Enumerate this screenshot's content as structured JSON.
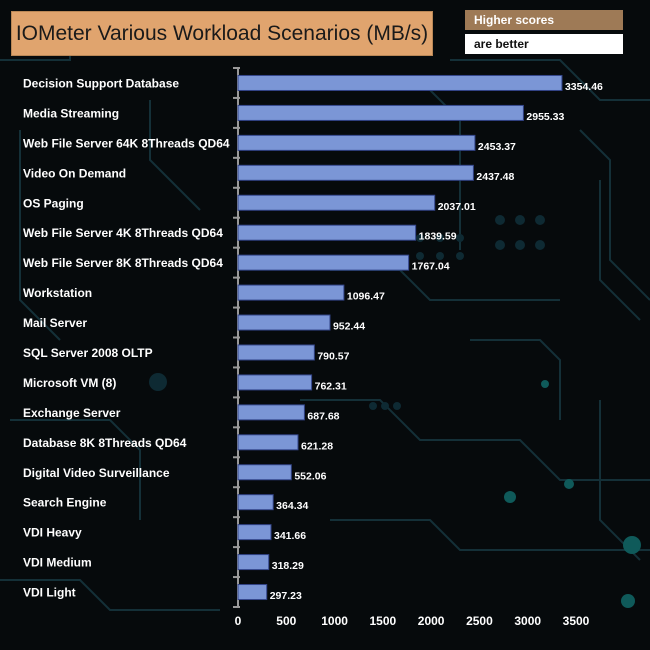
{
  "title": "IOMeter Various Workload Scenarios (MB/s)",
  "notes": {
    "line1": "Higher scores",
    "line2": "are better"
  },
  "colors": {
    "bar": "#7b96d6",
    "bar_edge": "#33458a",
    "label": "#ffffff",
    "title_bg": "#e0a46e"
  },
  "chart_data": {
    "type": "bar",
    "orientation": "horizontal",
    "title": "IOMeter Various Workload Scenarios (MB/s)",
    "categories": [
      "Decision Support Database",
      "Media Streaming",
      "Web File Server 64K 8Threads QD64",
      "Video On Demand",
      "OS Paging",
      "Web File Server 4K 8Threads QD64",
      "Web File Server 8K 8Threads QD64",
      "Workstation",
      "Mail Server",
      "SQL Server 2008 OLTP",
      "Microsoft VM (8)",
      "Exchange Server",
      "Database 8K 8Threads QD64",
      "Digital Video Surveillance",
      "Search Engine",
      "VDI Heavy",
      "VDI Medium",
      "VDI Light"
    ],
    "values": [
      3354.46,
      2955.33,
      2453.37,
      2437.48,
      2037.01,
      1839.59,
      1767.04,
      1096.47,
      952.44,
      790.57,
      762.31,
      687.68,
      621.28,
      552.06,
      364.34,
      341.66,
      318.29,
      297.23
    ],
    "value_labels": [
      "3354.46",
      "2955.33",
      "2453.37",
      "2437.48",
      "2037.01",
      "1839.59",
      "1767.04",
      "1096.47",
      "952.44",
      "790.57",
      "762.31",
      "687.68",
      "621.28",
      "552.06",
      "364.34",
      "341.66",
      "318.29",
      "297.23"
    ],
    "xlim": [
      0,
      3500
    ],
    "xticks": [
      "0",
      "500",
      "1000",
      "1500",
      "2000",
      "2500",
      "3000",
      "3500"
    ],
    "grid": false,
    "legend": "none"
  }
}
